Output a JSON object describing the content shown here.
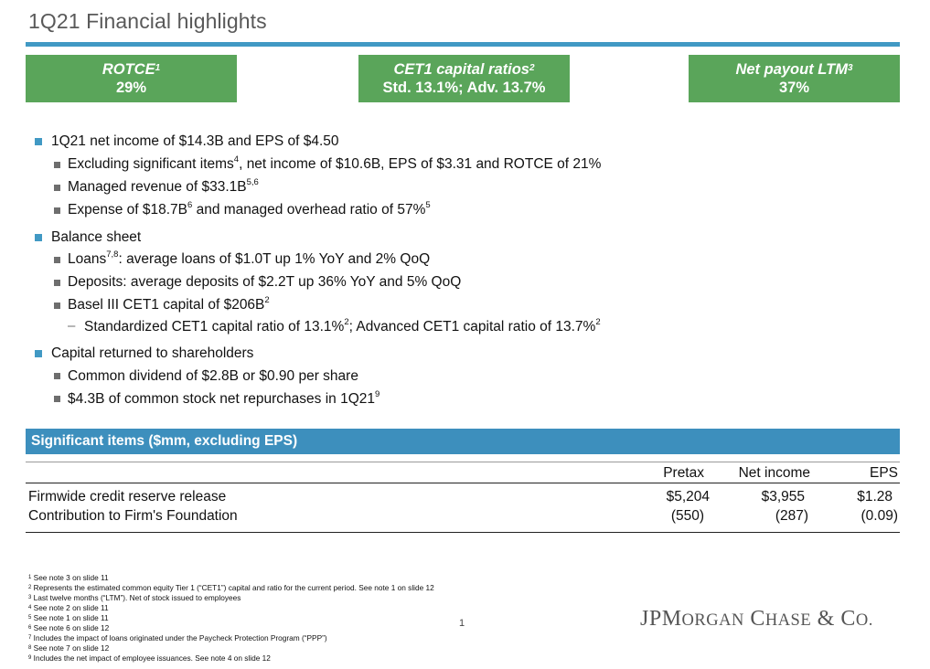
{
  "title": "1Q21 Financial highlights",
  "kpis": [
    {
      "label": "ROTCE",
      "sup": "1",
      "value": "29%"
    },
    {
      "label": "CET1 capital ratios",
      "sup": "2",
      "value": "Std. 13.1%; Adv. 13.7%"
    },
    {
      "label": "Net payout LTM",
      "sup": "3",
      "value": "37%"
    }
  ],
  "bullets": {
    "b1": "1Q21 net income of $14.3B and EPS of $4.50",
    "b1_1_a": "Excluding significant items",
    "b1_1_sup": "4",
    "b1_1_b": ", net income of $10.6B, EPS of $3.31 and ROTCE of 21%",
    "b1_2_a": "Managed revenue of $33.1B",
    "b1_2_sup": "5,6",
    "b1_3_a": "Expense of $18.7B",
    "b1_3_sup1": "6",
    "b1_3_b": " and managed overhead ratio of 57%",
    "b1_3_sup2": "5",
    "b2": "Balance sheet",
    "b2_1_a": "Loans",
    "b2_1_sup": "7,8",
    "b2_1_b": ": average loans of $1.0T up 1% YoY and 2% QoQ",
    "b2_2": "Deposits: average deposits of $2.2T up 36% YoY and 5% QoQ",
    "b2_3_a": "Basel III CET1 capital of $206B",
    "b2_3_sup": "2",
    "b2_3_1_dash": "–",
    "b2_3_1_a": "Standardized CET1 capital ratio of 13.1%",
    "b2_3_1_sup1": "2",
    "b2_3_1_b": "; Advanced CET1 capital ratio of 13.7%",
    "b2_3_1_sup2": "2",
    "b3": "Capital returned to shareholders",
    "b3_1": "Common dividend of $2.8B or $0.90 per share",
    "b3_2_a": "$4.3B of common stock net repurchases in 1Q21",
    "b3_2_sup": "9"
  },
  "significant_items": {
    "header": "Significant items ($mm, excluding EPS)",
    "columns": [
      "Pretax",
      "Net income",
      "EPS"
    ],
    "rows": [
      {
        "label": "Firmwide credit reserve release",
        "pretax": "$5,204",
        "net_income": "$3,955",
        "eps": "$1.28"
      },
      {
        "label": "Contribution to Firm's Foundation",
        "pretax": "(550)",
        "net_income": "(287)",
        "eps": "(0.09)"
      }
    ]
  },
  "footnotes": [
    {
      "n": "1",
      "text": "See note 3 on slide 11"
    },
    {
      "n": "2",
      "text": "Represents the estimated common equity Tier 1 (“CET1”) capital and ratio for the current period. See note 1 on slide 12"
    },
    {
      "n": "3",
      "text": "Last twelve months (“LTM”). Net of stock issued to employees"
    },
    {
      "n": "4",
      "text": "See note 2 on slide 11"
    },
    {
      "n": "5",
      "text": "See note 1 on slide 11"
    },
    {
      "n": "6",
      "text": "See note 6 on slide 12"
    },
    {
      "n": "7",
      "text": "Includes the impact of loans originated under the Paycheck Protection Program (“PPP”)"
    },
    {
      "n": "8",
      "text": "See note 7 on slide 12"
    },
    {
      "n": "9",
      "text": "Includes the net impact of employee issuances. See note 4 on slide 12"
    }
  ],
  "page_number": "1",
  "logo": {
    "jp": "JP",
    "m": "M",
    "organ": "ORGAN",
    "c": "C",
    "hase": "HASE",
    "amp": " & ",
    "co_c": "C",
    "co_o": "O."
  },
  "colors": {
    "accent_blue": "#4199c4",
    "kpi_green": "#5aa55a",
    "table_header_blue": "#3d8fbd"
  }
}
